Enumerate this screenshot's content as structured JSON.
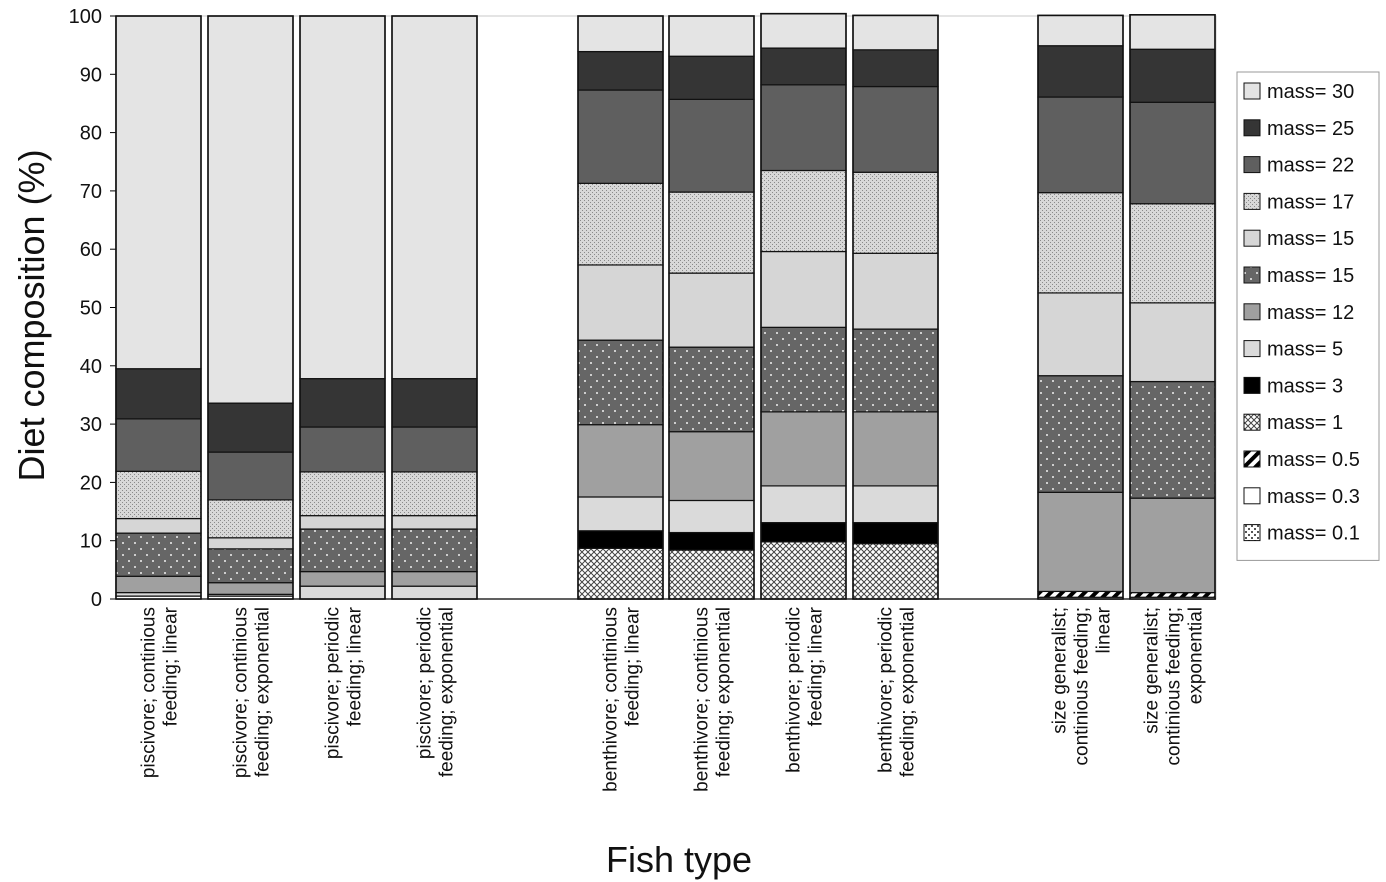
{
  "chart_data": {
    "type": "bar",
    "stacked": true,
    "title": "",
    "xlabel": "Fish type",
    "ylabel": "Diet composition (%)",
    "ylim": [
      0,
      100
    ],
    "yticks": [
      0,
      10,
      20,
      30,
      40,
      50,
      60,
      70,
      80,
      90,
      100
    ],
    "grid": false,
    "legend_position": "right",
    "categories": [
      [
        "piscivore; continious",
        "feeding; linear"
      ],
      [
        "piscivore; continious",
        "feeding; exponential"
      ],
      [
        "piscivore; periodic",
        "feeding; linear"
      ],
      [
        "piscivore; periodic",
        "feeding; exponential"
      ],
      [
        "benthivore; continious",
        "feeding; linear"
      ],
      [
        "benthivore; continious",
        "feeding; exponential"
      ],
      [
        "benthivore; periodic",
        "feeding; linear"
      ],
      [
        "benthivore; periodic",
        "feeding; exponential"
      ],
      [
        "size generalist;",
        "continious feeding;",
        "linear"
      ],
      [
        "size generalist;",
        "continious feeding;",
        "exponential"
      ]
    ],
    "series": [
      {
        "name": "mass= 0.1",
        "pattern": "dots-light",
        "values": [
          0,
          0,
          0,
          0,
          0,
          0,
          0,
          0,
          0,
          0
        ]
      },
      {
        "name": "mass= 0.3",
        "pattern": "white",
        "values": [
          0.5,
          0.5,
          0,
          0,
          0,
          0,
          0,
          0,
          0.3,
          0.3
        ]
      },
      {
        "name": "mass= 0.5",
        "pattern": "diagonal",
        "values": [
          0,
          0,
          0,
          0,
          0,
          0,
          0,
          0,
          1.0,
          0.8
        ]
      },
      {
        "name": "mass= 1",
        "pattern": "crosshatch",
        "values": [
          0,
          0,
          0,
          0,
          8.7,
          8.4,
          9.8,
          9.5,
          0,
          0
        ]
      },
      {
        "name": "mass= 3",
        "pattern": "black",
        "values": [
          0,
          0,
          0,
          0,
          3.0,
          3.0,
          3.3,
          3.6,
          0,
          0
        ]
      },
      {
        "name": "mass= 5",
        "pattern": "light",
        "values": [
          0.6,
          0.3,
          2.2,
          2.2,
          5.8,
          5.5,
          6.3,
          6.3,
          0,
          0
        ]
      },
      {
        "name": "mass= 12",
        "pattern": "mid",
        "values": [
          2.8,
          2.0,
          2.5,
          2.5,
          12.4,
          11.8,
          12.7,
          12.7,
          17.0,
          16.2
        ]
      },
      {
        "name": "mass= 15",
        "pattern": "dots-dark",
        "values": [
          7.4,
          5.8,
          7.3,
          7.3,
          14.5,
          14.5,
          14.5,
          14.2,
          20.0,
          20.0
        ]
      },
      {
        "name": "mass= 15",
        "pattern": "light2",
        "values": [
          2.5,
          1.9,
          2.3,
          2.3,
          12.9,
          12.7,
          13.0,
          13.0,
          14.2,
          13.5
        ]
      },
      {
        "name": "mass= 17",
        "pattern": "stipple",
        "values": [
          8.1,
          6.5,
          7.5,
          7.5,
          14.0,
          13.9,
          13.9,
          13.9,
          17.2,
          17.0
        ]
      },
      {
        "name": "mass= 22",
        "pattern": "darkgray",
        "values": [
          9.0,
          8.2,
          7.7,
          7.7,
          16.0,
          15.9,
          14.7,
          14.7,
          16.4,
          17.4
        ]
      },
      {
        "name": "mass= 25",
        "pattern": "darker",
        "values": [
          8.6,
          8.4,
          8.3,
          8.3,
          6.6,
          7.4,
          6.3,
          6.3,
          8.8,
          9.1
        ]
      },
      {
        "name": "mass= 30",
        "pattern": "lightest",
        "values": [
          60.5,
          66.4,
          62.2,
          62.2,
          6.1,
          6.9,
          5.9,
          5.9,
          5.2,
          5.9
        ]
      }
    ]
  }
}
